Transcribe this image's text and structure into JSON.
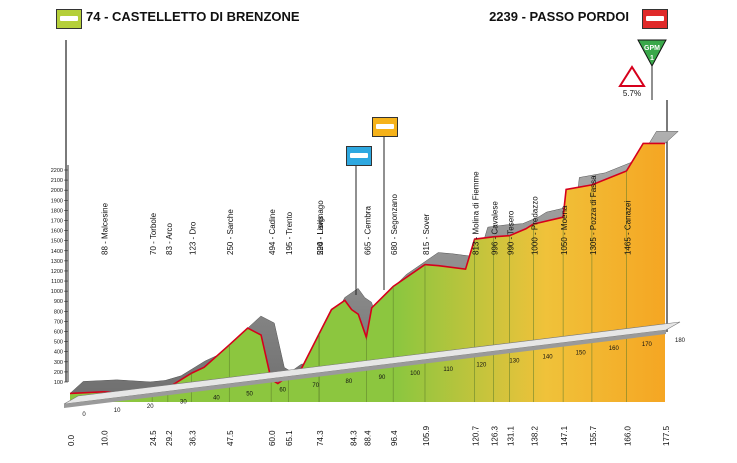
{
  "start_label": "74 - CASTELLETTO DI BRENZONE",
  "finish_label": "2239 - PASSO PORDOI",
  "colors": {
    "start_badge": "#b5cf3a",
    "finish_badge": "#e02a2a",
    "sprint_badge": "#2ea8e0",
    "feed_badge": "#f5b21a",
    "gpm_marker": "#3aa84a",
    "terrain_green": "#8cc63f",
    "terrain_yellow": "#f0c23a",
    "terrain_orange": "#f5a623",
    "road_red": "#d6001c",
    "slab_gray": "#8a8a8a"
  },
  "gpm_marker": {
    "text": "GPM",
    "category": "1"
  },
  "climb_sign": {
    "text": "5.7%"
  },
  "chart_data": {
    "type": "area",
    "title": "",
    "ylabel": "",
    "xlabel": "",
    "ylim": [
      0,
      2200
    ],
    "xlim": [
      0,
      177.5
    ],
    "yticks": [
      100,
      200,
      300,
      400,
      500,
      600,
      700,
      800,
      900,
      1000,
      1100,
      1200,
      1300,
      1400,
      1500,
      1600,
      1700,
      1800,
      1900,
      2000,
      2100,
      2200
    ],
    "xticks": [
      0,
      10,
      20,
      30,
      40,
      50,
      60,
      70,
      80,
      90,
      100,
      110,
      120,
      130,
      140,
      150,
      160,
      170,
      180
    ],
    "profile": [
      [
        0,
        74
      ],
      [
        10,
        88
      ],
      [
        20,
        70
      ],
      [
        24.5,
        83
      ],
      [
        29.2,
        123
      ],
      [
        36.3,
        250
      ],
      [
        40,
        300
      ],
      [
        47.5,
        494
      ],
      [
        53,
        640
      ],
      [
        57,
        580
      ],
      [
        60,
        195
      ],
      [
        62,
        160
      ],
      [
        65.1,
        224
      ],
      [
        68,
        230
      ],
      [
        74.3,
        590
      ],
      [
        78,
        800
      ],
      [
        82,
        880
      ],
      [
        84,
        800
      ],
      [
        86,
        760
      ],
      [
        88.4,
        560
      ],
      [
        90,
        815
      ],
      [
        96.4,
        1000
      ],
      [
        105.9,
        1190
      ],
      [
        110,
        1180
      ],
      [
        118,
        1150
      ],
      [
        120.7,
        1410
      ],
      [
        126.3,
        1430
      ],
      [
        131.1,
        1440
      ],
      [
        136,
        1500
      ],
      [
        138.2,
        1540
      ],
      [
        147.1,
        1600
      ],
      [
        148,
        1840
      ],
      [
        155.7,
        1880
      ],
      [
        166,
        2000
      ],
      [
        171,
        2239
      ],
      [
        177.5,
        2239
      ]
    ],
    "locations": [
      {
        "name": "Malcesine",
        "km": "10.0",
        "alt": "88"
      },
      {
        "name": "Torbole",
        "km": "24.5",
        "alt": "70"
      },
      {
        "name": "Arco",
        "km": "29.2",
        "alt": "83"
      },
      {
        "name": "Dro",
        "km": "36.3",
        "alt": "123"
      },
      {
        "name": "Sarche",
        "km": "47.5",
        "alt": "250"
      },
      {
        "name": "Cadine",
        "km": "60.0",
        "alt": "494"
      },
      {
        "name": "Trento",
        "km": "65.1",
        "alt": "195"
      },
      {
        "name": "Lavis",
        "km": "74.3",
        "alt": "224"
      },
      {
        "name": "Lisignago",
        "km": "74.3",
        "alt": "590"
      },
      {
        "name": "Cembra",
        "km": "88.4",
        "alt": "665"
      },
      {
        "name": "Segonzano",
        "km": "96.4",
        "alt": "680"
      },
      {
        "name": "Sover",
        "km": "105.9",
        "alt": "815"
      },
      {
        "name": "Molina di Fiemme",
        "km": "120.7",
        "alt": "813"
      },
      {
        "name": "Cavalese",
        "km": "126.3",
        "alt": "996"
      },
      {
        "name": "Tesero",
        "km": "131.1",
        "alt": "990"
      },
      {
        "name": "Predazzo",
        "km": "138.2",
        "alt": "1000"
      },
      {
        "name": "Moena",
        "km": "147.1",
        "alt": "1050"
      },
      {
        "name": "Pozza di Fassa",
        "km": "155.7",
        "alt": "1305"
      },
      {
        "name": "Canazei",
        "km": "166.0",
        "alt": "1465"
      }
    ],
    "km_markers": [
      "0.0",
      "10.0",
      "24.5",
      "29.2",
      "36.3",
      "47.5",
      "60.0",
      "65.1",
      "74.3",
      "84.3",
      "88.4",
      "96.4",
      "105.9",
      "120.7",
      "126.3",
      "131.1",
      "138.2",
      "147.1",
      "155.7",
      "166.0",
      "177.5"
    ],
    "km_marker_values": [
      0.0,
      10.0,
      24.5,
      29.2,
      36.3,
      47.5,
      60.0,
      65.1,
      74.3,
      84.3,
      88.4,
      96.4,
      105.9,
      120.7,
      126.3,
      131.1,
      138.2,
      147.1,
      155.7,
      166.0,
      177.5
    ]
  }
}
